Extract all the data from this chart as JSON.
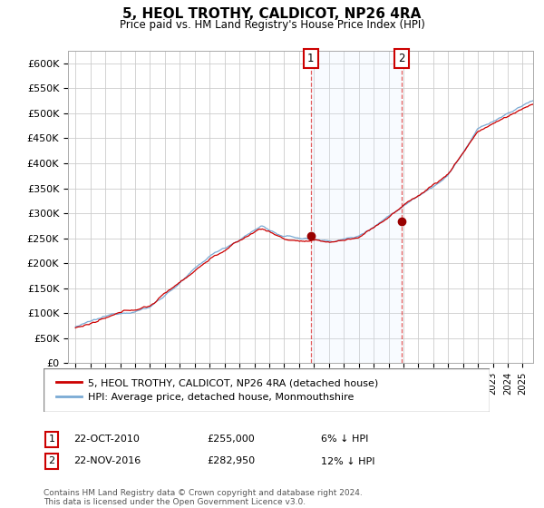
{
  "title": "5, HEOL TROTHY, CALDICOT, NP26 4RA",
  "subtitle": "Price paid vs. HM Land Registry's House Price Index (HPI)",
  "ylim": [
    0,
    620000
  ],
  "yticks": [
    0,
    50000,
    100000,
    150000,
    200000,
    250000,
    300000,
    350000,
    400000,
    450000,
    500000,
    550000,
    600000
  ],
  "ytick_labels": [
    "£0",
    "£50K",
    "£100K",
    "£150K",
    "£200K",
    "£250K",
    "£300K",
    "£350K",
    "£400K",
    "£450K",
    "£500K",
    "£550K",
    "£600K"
  ],
  "hpi_color": "#7aaad4",
  "price_color": "#cc0000",
  "sale1_year": 2010.79,
  "sale2_year": 2016.88,
  "sale1_label": "1",
  "sale2_label": "2",
  "sale1_price": 255000,
  "sale2_price": 282950,
  "legend_line1": "5, HEOL TROTHY, CALDICOT, NP26 4RA (detached house)",
  "legend_line2": "HPI: Average price, detached house, Monmouthshire",
  "date1": "22-OCT-2010",
  "price1_str": "£255,000",
  "pct1": "6% ↓ HPI",
  "date2": "22-NOV-2016",
  "price2_str": "£282,950",
  "pct2": "12% ↓ HPI",
  "footnote": "Contains HM Land Registry data © Crown copyright and database right 2024.\nThis data is licensed under the Open Government Licence v3.0.",
  "background_color": "#ffffff",
  "grid_color": "#cccccc",
  "shade_color": "#ddeeff"
}
